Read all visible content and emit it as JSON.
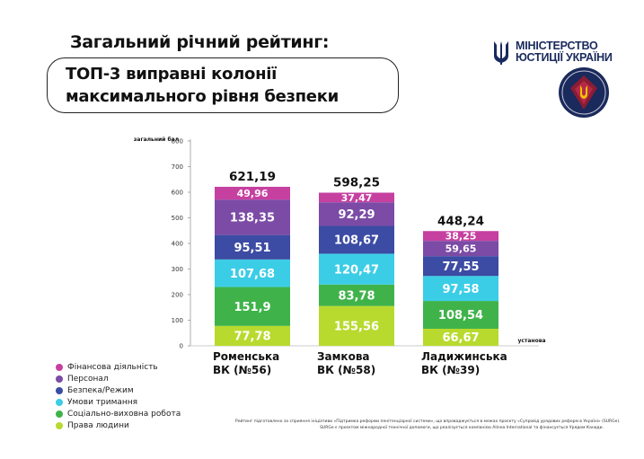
{
  "header": {
    "title": "Загальний річний рейтинг:",
    "subtitle_line1": "ТОП-3 виправні колонії",
    "subtitle_line2": "максимального рівня безпеки",
    "ministry_line1": "МІНІСТЕРСТВО",
    "ministry_line2": "ЮСТИЦІЇ УКРАЇНИ"
  },
  "colors": {
    "finance": "#c640a0",
    "staff": "#7b4ba6",
    "security": "#3c4ba3",
    "conditions": "#3ccde6",
    "social": "#3fb34a",
    "rights": "#b8da2e",
    "ministry_blue": "#1a2a5c",
    "ministry_yellow": "#f5c400"
  },
  "chart_data": {
    "type": "bar",
    "stacked": true,
    "categories": [
      "Роменська ВК (№56)",
      "Замкова ВК (№58)",
      "Ладижинська ВК (№39)"
    ],
    "category_lines": [
      [
        "Роменська",
        "ВК (№56)"
      ],
      [
        "Замкова",
        "ВК (№58)"
      ],
      [
        "Ладижинська",
        "ВК (№39)"
      ]
    ],
    "series": [
      {
        "name": "Права людини",
        "color": "#b8da2e",
        "values": [
          77.78,
          155.56,
          66.67
        ],
        "labels": [
          "77,78",
          "155,56",
          "66,67"
        ]
      },
      {
        "name": "Соціально-виховна робота",
        "color": "#3fb34a",
        "values": [
          151.9,
          83.78,
          108.54
        ],
        "labels": [
          "151,9",
          "83,78",
          "108,54"
        ]
      },
      {
        "name": "Умови тримання",
        "color": "#3ccde6",
        "values": [
          107.68,
          120.47,
          97.58
        ],
        "labels": [
          "107,68",
          "120,47",
          "97,58"
        ]
      },
      {
        "name": "Безпека/Режим",
        "color": "#3c4ba3",
        "values": [
          95.51,
          108.67,
          77.55
        ],
        "labels": [
          "95,51",
          "108,67",
          "77,55"
        ]
      },
      {
        "name": "Персонал",
        "color": "#7b4ba6",
        "values": [
          138.35,
          92.29,
          59.65
        ],
        "labels": [
          "138,35",
          "92,29",
          "59,65"
        ]
      },
      {
        "name": "Фінансова діяльність",
        "color": "#c640a0",
        "values": [
          49.96,
          37.47,
          38.25
        ],
        "labels": [
          "49,96",
          "37,47",
          "38,25"
        ]
      }
    ],
    "totals": [
      "621,19",
      "598,25",
      "448,24"
    ],
    "ylabel": "загальний бал",
    "xlabel": "установа",
    "ylim": [
      0,
      800
    ],
    "yticks": [
      0,
      100,
      200,
      300,
      400,
      500,
      600,
      700,
      800
    ],
    "legend_position": "bottom-left"
  },
  "legend": [
    {
      "label": "Фінансова діяльність",
      "color": "#c640a0"
    },
    {
      "label": "Персонал",
      "color": "#7b4ba6"
    },
    {
      "label": "Безпека/Режим",
      "color": "#3c4ba3"
    },
    {
      "label": "Умови тримання",
      "color": "#3ccde6"
    },
    {
      "label": "Соціально-виховна робота",
      "color": "#3fb34a"
    },
    {
      "label": "Права людини",
      "color": "#b8da2e"
    }
  ],
  "footnote": {
    "line1": "Рейтинг підготовлено за сприяння ініціативи «Підтримка реформи пенітенціарної системи», що впроваджується в межах проєкту «Супровід урядових реформ в Україні» (SURGe).",
    "line2": "SURGe є проєктом міжнародної технічної допомоги, що реалізується компанією Alinea International та фінансується Урядом Канади."
  }
}
